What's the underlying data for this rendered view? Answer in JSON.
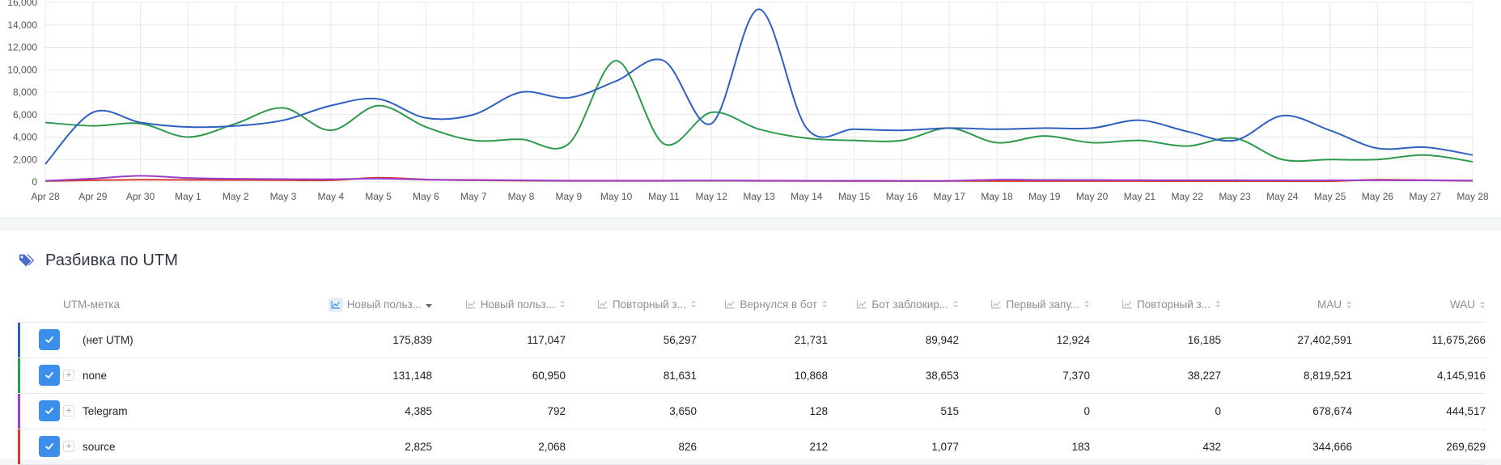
{
  "chart_data": {
    "type": "line",
    "x": [
      "Apr 28",
      "Apr 29",
      "Apr 30",
      "May 1",
      "May 2",
      "May 3",
      "May 4",
      "May 5",
      "May 6",
      "May 7",
      "May 8",
      "May 9",
      "May 10",
      "May 11",
      "May 12",
      "May 13",
      "May 14",
      "May 15",
      "May 16",
      "May 17",
      "May 18",
      "May 19",
      "May 20",
      "May 21",
      "May 22",
      "May 23",
      "May 24",
      "May 25",
      "May 26",
      "May 27",
      "May 28"
    ],
    "ylim": [
      0,
      16000
    ],
    "yticks": [
      0,
      2000,
      4000,
      6000,
      8000,
      10000,
      12000,
      14000,
      16000
    ],
    "ytick_labels": [
      "0",
      "2,000",
      "4,000",
      "6,000",
      "8,000",
      "10,000",
      "12,000",
      "14,000",
      "16,000"
    ],
    "grid": true,
    "series": [
      {
        "color": "#2f5fbf",
        "values": [
          1600,
          6200,
          5300,
          4900,
          5000,
          5500,
          6800,
          7400,
          5700,
          6000,
          8000,
          7500,
          9000,
          10800,
          5200,
          15400,
          4800,
          4700,
          4600,
          4800,
          4700,
          4800,
          4800,
          5500,
          4500,
          3700,
          5900,
          4600,
          3000,
          3100,
          2400
        ]
      },
      {
        "color": "#2e9a4e",
        "values": [
          5300,
          5000,
          5200,
          4000,
          5200,
          6600,
          4600,
          6800,
          4900,
          3700,
          3800,
          3400,
          10800,
          3400,
          6200,
          4700,
          3900,
          3700,
          3700,
          4800,
          3500,
          4100,
          3500,
          3700,
          3200,
          3900,
          2000,
          2000,
          2000,
          2400,
          1800
        ]
      },
      {
        "color": "#9a3ec7",
        "values": [
          100,
          300,
          550,
          350,
          280,
          250,
          240,
          300,
          200,
          180,
          150,
          120,
          120,
          120,
          130,
          120,
          110,
          110,
          100,
          100,
          200,
          180,
          170,
          160,
          150,
          150,
          140,
          140,
          150,
          140,
          130
        ]
      },
      {
        "color": "#d63b2f",
        "values": [
          80,
          150,
          200,
          180,
          170,
          160,
          150,
          380,
          220,
          150,
          120,
          100,
          100,
          100,
          110,
          100,
          90,
          80,
          80,
          90,
          80,
          80,
          80,
          80,
          70,
          70,
          70,
          70,
          200,
          160,
          100
        ]
      }
    ]
  },
  "section": {
    "title": "Разбивка по UTM"
  },
  "table": {
    "columns": [
      {
        "label": "Новый польз...",
        "sort": "desc"
      },
      {
        "label": "Новый польз...",
        "sort": "none"
      },
      {
        "label": "Повторный з...",
        "sort": "none"
      },
      {
        "label": "Вернулся в бот",
        "sort": "none"
      },
      {
        "label": "Бот заблокир...",
        "sort": "none"
      },
      {
        "label": "Первый запу...",
        "sort": "none"
      },
      {
        "label": "Повторный з...",
        "sort": "none"
      },
      {
        "label": "MAU",
        "sort": "none"
      },
      {
        "label": "WAU",
        "sort": "none"
      }
    ],
    "name_header": "UTM-метка",
    "rows": [
      {
        "name": "(нет UTM)",
        "color": "#2f5fbf",
        "expandable": false,
        "values": [
          "175,839",
          "117,047",
          "56,297",
          "21,731",
          "89,942",
          "12,924",
          "16,185",
          "27,402,591",
          "11,675,266"
        ]
      },
      {
        "name": "none",
        "color": "#2e9a4e",
        "expandable": true,
        "values": [
          "131,148",
          "60,950",
          "81,631",
          "10,868",
          "38,653",
          "7,370",
          "38,227",
          "8,819,521",
          "4,145,916"
        ]
      },
      {
        "name": "Telegram",
        "color": "#9a3ec7",
        "expandable": true,
        "values": [
          "4,385",
          "792",
          "3,650",
          "128",
          "515",
          "0",
          "0",
          "678,674",
          "444,517"
        ]
      },
      {
        "name": "source",
        "color": "#d63b2f",
        "expandable": true,
        "values": [
          "2,825",
          "2,068",
          "826",
          "212",
          "1,077",
          "183",
          "432",
          "344,666",
          "269,629"
        ]
      }
    ],
    "plus_glyph": "+"
  },
  "colors": {
    "accent": "#3b8eea",
    "grid": "#e8e8e8"
  }
}
